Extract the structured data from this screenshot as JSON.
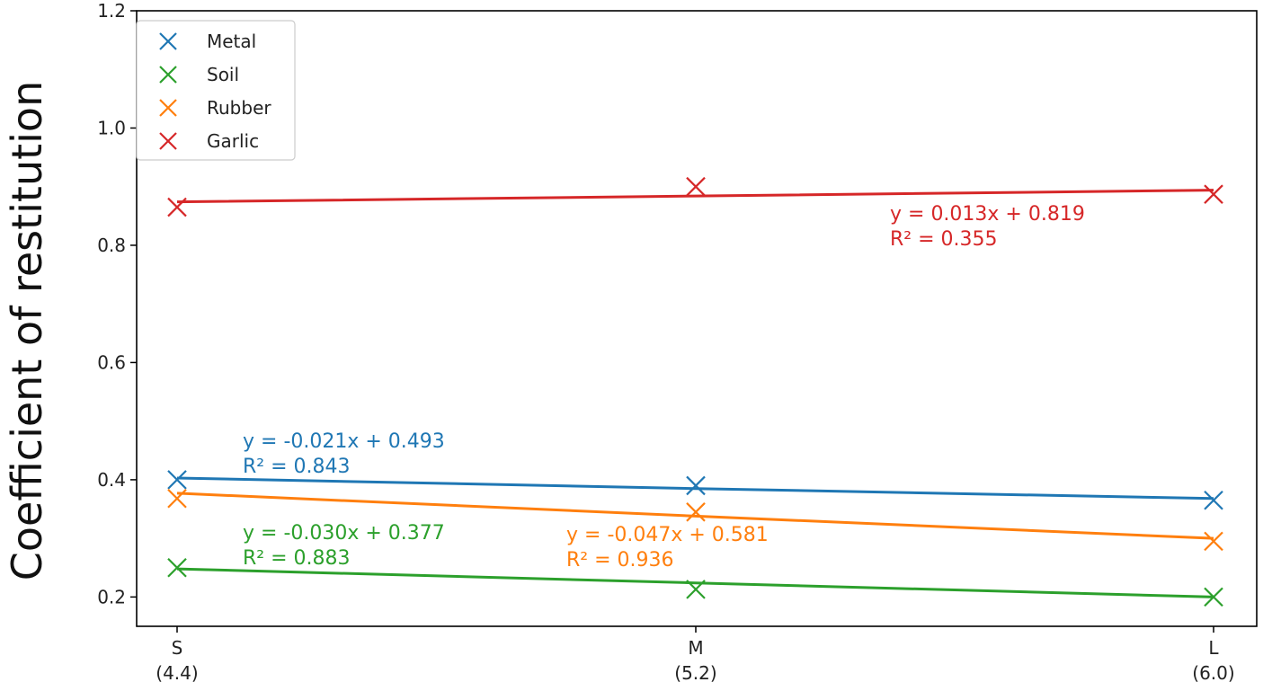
{
  "chart_data": {
    "type": "scatter",
    "title": "",
    "xlabel": "",
    "ylabel": "Coefficient of restitution",
    "ylim": [
      0.15,
      1.2
    ],
    "yticks": [
      "0.2",
      "0.4",
      "0.6",
      "0.8",
      "1.0",
      "1.2"
    ],
    "categories": [
      {
        "top": "S",
        "bottom": "(4.4)"
      },
      {
        "top": "M",
        "bottom": "(5.2)"
      },
      {
        "top": "L",
        "bottom": "(6.0)"
      }
    ],
    "grid": false,
    "legend_position": "top-left",
    "series": [
      {
        "name": "Metal",
        "color": "#1f77b4",
        "marker": "x",
        "values": [
          0.4,
          0.39,
          0.365
        ],
        "trendline": [
          0.403,
          0.385,
          0.368
        ],
        "equation": "y = -0.021x + 0.493",
        "r2": "R² = 0.843"
      },
      {
        "name": "Soil",
        "color": "#2ca02c",
        "marker": "x",
        "values": [
          0.25,
          0.213,
          0.2
        ],
        "trendline": [
          0.248,
          0.224,
          0.2
        ],
        "equation": "y = -0.030x + 0.377",
        "r2": "R² = 0.883"
      },
      {
        "name": "Rubber",
        "color": "#ff7f0e",
        "marker": "x",
        "values": [
          0.368,
          0.345,
          0.295
        ],
        "trendline": [
          0.377,
          0.338,
          0.3
        ],
        "equation": "y = -0.047x + 0.581",
        "r2": "R² = 0.936"
      },
      {
        "name": "Garlic",
        "color": "#d62728",
        "marker": "x",
        "values": [
          0.865,
          0.9,
          0.887
        ],
        "trendline": [
          0.874,
          0.884,
          0.894
        ],
        "equation": "y = 0.013x + 0.819",
        "r2": "R² = 0.355"
      }
    ]
  }
}
